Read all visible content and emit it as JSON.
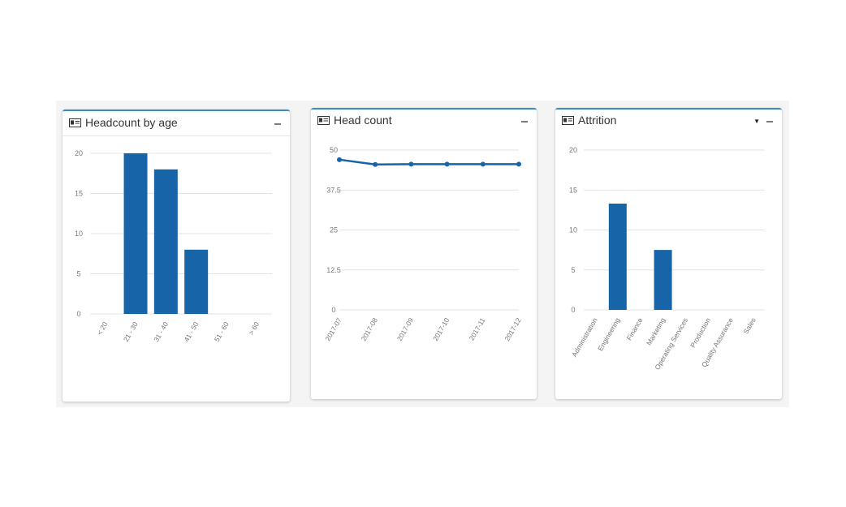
{
  "colors": {
    "bar": "#1764a8",
    "grid": "#e3e3e3",
    "tick": "#777777",
    "accent": "#3c8dbc"
  },
  "cards": [
    {
      "title": "Headcount by age",
      "icon": "id-card-icon",
      "controls": [
        "collapse-icon"
      ],
      "chart_data": {
        "type": "bar",
        "categories": [
          "< 20",
          "21 - 30",
          "31 - 40",
          "41 - 50",
          "51 - 60",
          "> 60"
        ],
        "values": [
          0,
          20,
          18,
          8,
          0,
          0
        ],
        "yticks": [
          "0",
          "5",
          "10",
          "15",
          "20"
        ],
        "ylim": [
          0,
          20
        ],
        "grid": true
      }
    },
    {
      "title": "Head count",
      "icon": "id-card-icon",
      "controls": [
        "collapse-icon"
      ],
      "chart_data": {
        "type": "line",
        "x": [
          "2017-07",
          "2017-08",
          "2017-09",
          "2017-10",
          "2017-11",
          "2017-12"
        ],
        "values": [
          47,
          45.5,
          45.6,
          45.6,
          45.6,
          45.6
        ],
        "yticks": [
          "0",
          "12.5",
          "25",
          "37.5",
          "50"
        ],
        "ylim": [
          0,
          50
        ],
        "grid": true
      }
    },
    {
      "title": "Attrition",
      "icon": "id-card-icon",
      "controls": [
        "dropdown-caret-icon",
        "collapse-icon"
      ],
      "chart_data": {
        "type": "bar",
        "categories": [
          "Administration",
          "Engineering",
          "Finance",
          "Marketing",
          "Operating Services",
          "Production",
          "Quality Assurance",
          "Sales"
        ],
        "values": [
          0,
          13.3,
          0,
          7.5,
          0,
          0,
          0,
          0
        ],
        "yticks": [
          "0",
          "5",
          "10",
          "15",
          "20"
        ],
        "ylim": [
          0,
          20
        ],
        "grid": true
      }
    }
  ]
}
